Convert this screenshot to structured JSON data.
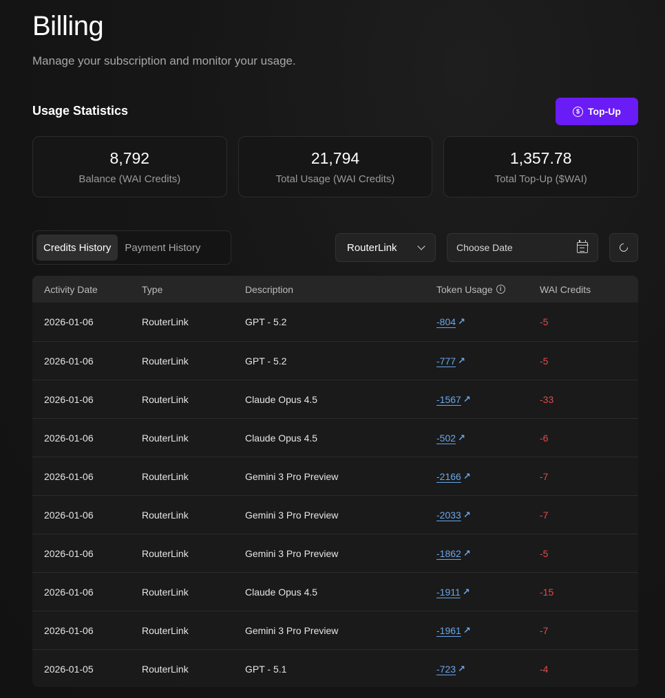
{
  "header": {
    "title": "Billing",
    "subtitle": "Manage your subscription and monitor your usage."
  },
  "usage": {
    "section_title": "Usage Statistics",
    "topup_label": "Top-Up",
    "stats": [
      {
        "value": "8,792",
        "label": "Balance (WAI Credits)"
      },
      {
        "value": "21,794",
        "label": "Total Usage (WAI Credits)"
      },
      {
        "value": "1,357.78",
        "label": "Total Top-Up ($WAI)"
      }
    ]
  },
  "tabs": [
    {
      "label": "Credits History",
      "active": true
    },
    {
      "label": "Payment History",
      "active": false
    }
  ],
  "filters": {
    "provider_value": "RouterLink",
    "date_placeholder": "Choose Date"
  },
  "table": {
    "columns": [
      "Activity Date",
      "Type",
      "Description",
      "Token Usage",
      "WAI Credits"
    ],
    "rows": [
      {
        "date": "2026-01-06",
        "type": "RouterLink",
        "desc": "GPT - 5.2",
        "tokens": "-804",
        "credits": "-5"
      },
      {
        "date": "2026-01-06",
        "type": "RouterLink",
        "desc": "GPT - 5.2",
        "tokens": "-777",
        "credits": "-5"
      },
      {
        "date": "2026-01-06",
        "type": "RouterLink",
        "desc": "Claude Opus 4.5",
        "tokens": "-1567",
        "credits": "-33"
      },
      {
        "date": "2026-01-06",
        "type": "RouterLink",
        "desc": "Claude Opus 4.5",
        "tokens": "-502",
        "credits": "-6"
      },
      {
        "date": "2026-01-06",
        "type": "RouterLink",
        "desc": "Gemini 3 Pro Preview",
        "tokens": "-2166",
        "credits": "-7"
      },
      {
        "date": "2026-01-06",
        "type": "RouterLink",
        "desc": "Gemini 3 Pro Preview",
        "tokens": "-2033",
        "credits": "-7"
      },
      {
        "date": "2026-01-06",
        "type": "RouterLink",
        "desc": "Gemini 3 Pro Preview",
        "tokens": "-1862",
        "credits": "-5"
      },
      {
        "date": "2026-01-06",
        "type": "RouterLink",
        "desc": "Claude Opus 4.5",
        "tokens": "-1911",
        "credits": "-15"
      },
      {
        "date": "2026-01-06",
        "type": "RouterLink",
        "desc": "Gemini 3 Pro Preview",
        "tokens": "-1961",
        "credits": "-7"
      },
      {
        "date": "2026-01-05",
        "type": "RouterLink",
        "desc": "GPT - 5.1",
        "tokens": "-723",
        "credits": "-4"
      }
    ]
  },
  "colors": {
    "accent": "#6a1cf6",
    "link": "#6aa8ec",
    "negative": "#e24c4c"
  }
}
